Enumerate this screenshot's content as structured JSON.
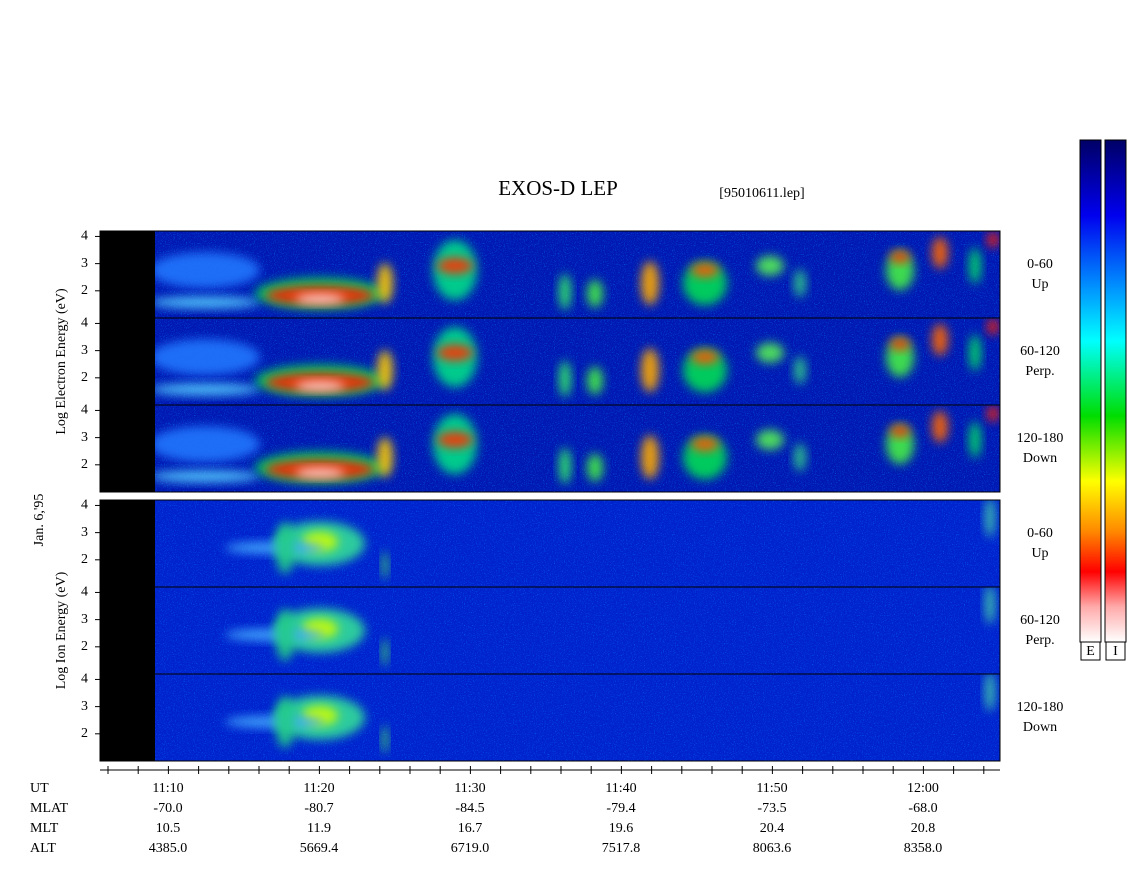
{
  "title": "EXOS-D LEP",
  "file": "[95010611.lep]",
  "date_label": "Jan. 6,'95",
  "groups": [
    {
      "ylabel": "Log Electron Energy (eV)",
      "panels": [
        {
          "angle": "0-60",
          "direction": "Up",
          "yticks": [
            2,
            3,
            4
          ]
        },
        {
          "angle": "60-120",
          "direction": "Perp.",
          "yticks": [
            2,
            3,
            4
          ]
        },
        {
          "angle": "120-180",
          "direction": "Down",
          "yticks": [
            2,
            3,
            4
          ]
        }
      ]
    },
    {
      "ylabel": "Log Ion Energy (eV)",
      "panels": [
        {
          "angle": "0-60",
          "direction": "Up",
          "yticks": [
            2,
            3,
            4
          ]
        },
        {
          "angle": "60-120",
          "direction": "Perp.",
          "yticks": [
            2,
            3,
            4
          ]
        },
        {
          "angle": "120-180",
          "direction": "Down",
          "yticks": [
            2,
            3,
            4
          ]
        }
      ]
    }
  ],
  "ylim": [
    1,
    4.2
  ],
  "time_axis": {
    "rows": [
      {
        "label": "UT",
        "values": [
          "11:10",
          "11:20",
          "11:30",
          "11:40",
          "11:50",
          "12:00"
        ]
      },
      {
        "label": "MLAT",
        "values": [
          "-70.0",
          "-80.7",
          "-84.5",
          "-79.4",
          "-73.5",
          "-68.0"
        ]
      },
      {
        "label": "MLT",
        "values": [
          "10.5",
          "11.9",
          "16.7",
          "19.6",
          "20.4",
          "20.8"
        ]
      },
      {
        "label": "ALT",
        "values": [
          "4385.0",
          "5669.4",
          "6719.0",
          "7517.8",
          "8063.6",
          "8358.0"
        ]
      }
    ]
  },
  "colorbars": [
    "E",
    "I"
  ]
}
